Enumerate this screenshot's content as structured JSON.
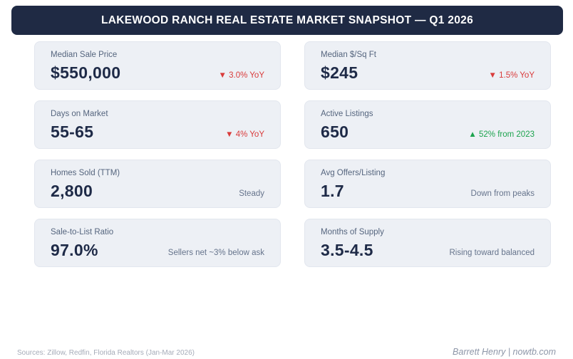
{
  "header": {
    "title": "LAKEWOOD RANCH REAL ESTATE MARKET SNAPSHOT — Q1 2026"
  },
  "cards": [
    {
      "label": "Median Sale Price",
      "value": "$550,000",
      "delta": "▼ 3.0% YoY",
      "delta_type": "down"
    },
    {
      "label": "Median $/Sq Ft",
      "value": "$245",
      "delta": "▼ 1.5% YoY",
      "delta_type": "down"
    },
    {
      "label": "Days on Market",
      "value": "55-65",
      "delta": "▼ 4% YoY",
      "delta_type": "down"
    },
    {
      "label": "Active Listings",
      "value": "650",
      "delta": "▲ 52% from 2023",
      "delta_type": "up"
    },
    {
      "label": "Homes Sold (TTM)",
      "value": "2,800",
      "delta": "Steady",
      "delta_type": "neutral"
    },
    {
      "label": "Avg Offers/Listing",
      "value": "1.7",
      "delta": "Down from peaks",
      "delta_type": "neutral"
    },
    {
      "label": "Sale-to-List Ratio",
      "value": "97.0%",
      "delta": "Sellers net ~3% below ask",
      "delta_type": "neutral"
    },
    {
      "label": "Months of Supply",
      "value": "3.5-4.5",
      "delta": "Rising toward balanced",
      "delta_type": "neutral"
    }
  ],
  "footer": {
    "sources": "Sources: Zillow, Redfin, Florida Realtors (Jan-Mar 2026)",
    "attribution": "Barrett Henry | nowtb.com"
  },
  "colors": {
    "header_bg": "#1f2a44",
    "card_bg": "#edf0f5",
    "card_border": "#e2e6ee",
    "label_text": "#55657e",
    "value_text": "#1e2a47",
    "delta_down": "#d93b3b",
    "delta_up": "#1da34e",
    "delta_neutral": "#66748c",
    "footer_sources_text": "#a5abb8",
    "footer_attribution_text": "#8d96a8"
  }
}
